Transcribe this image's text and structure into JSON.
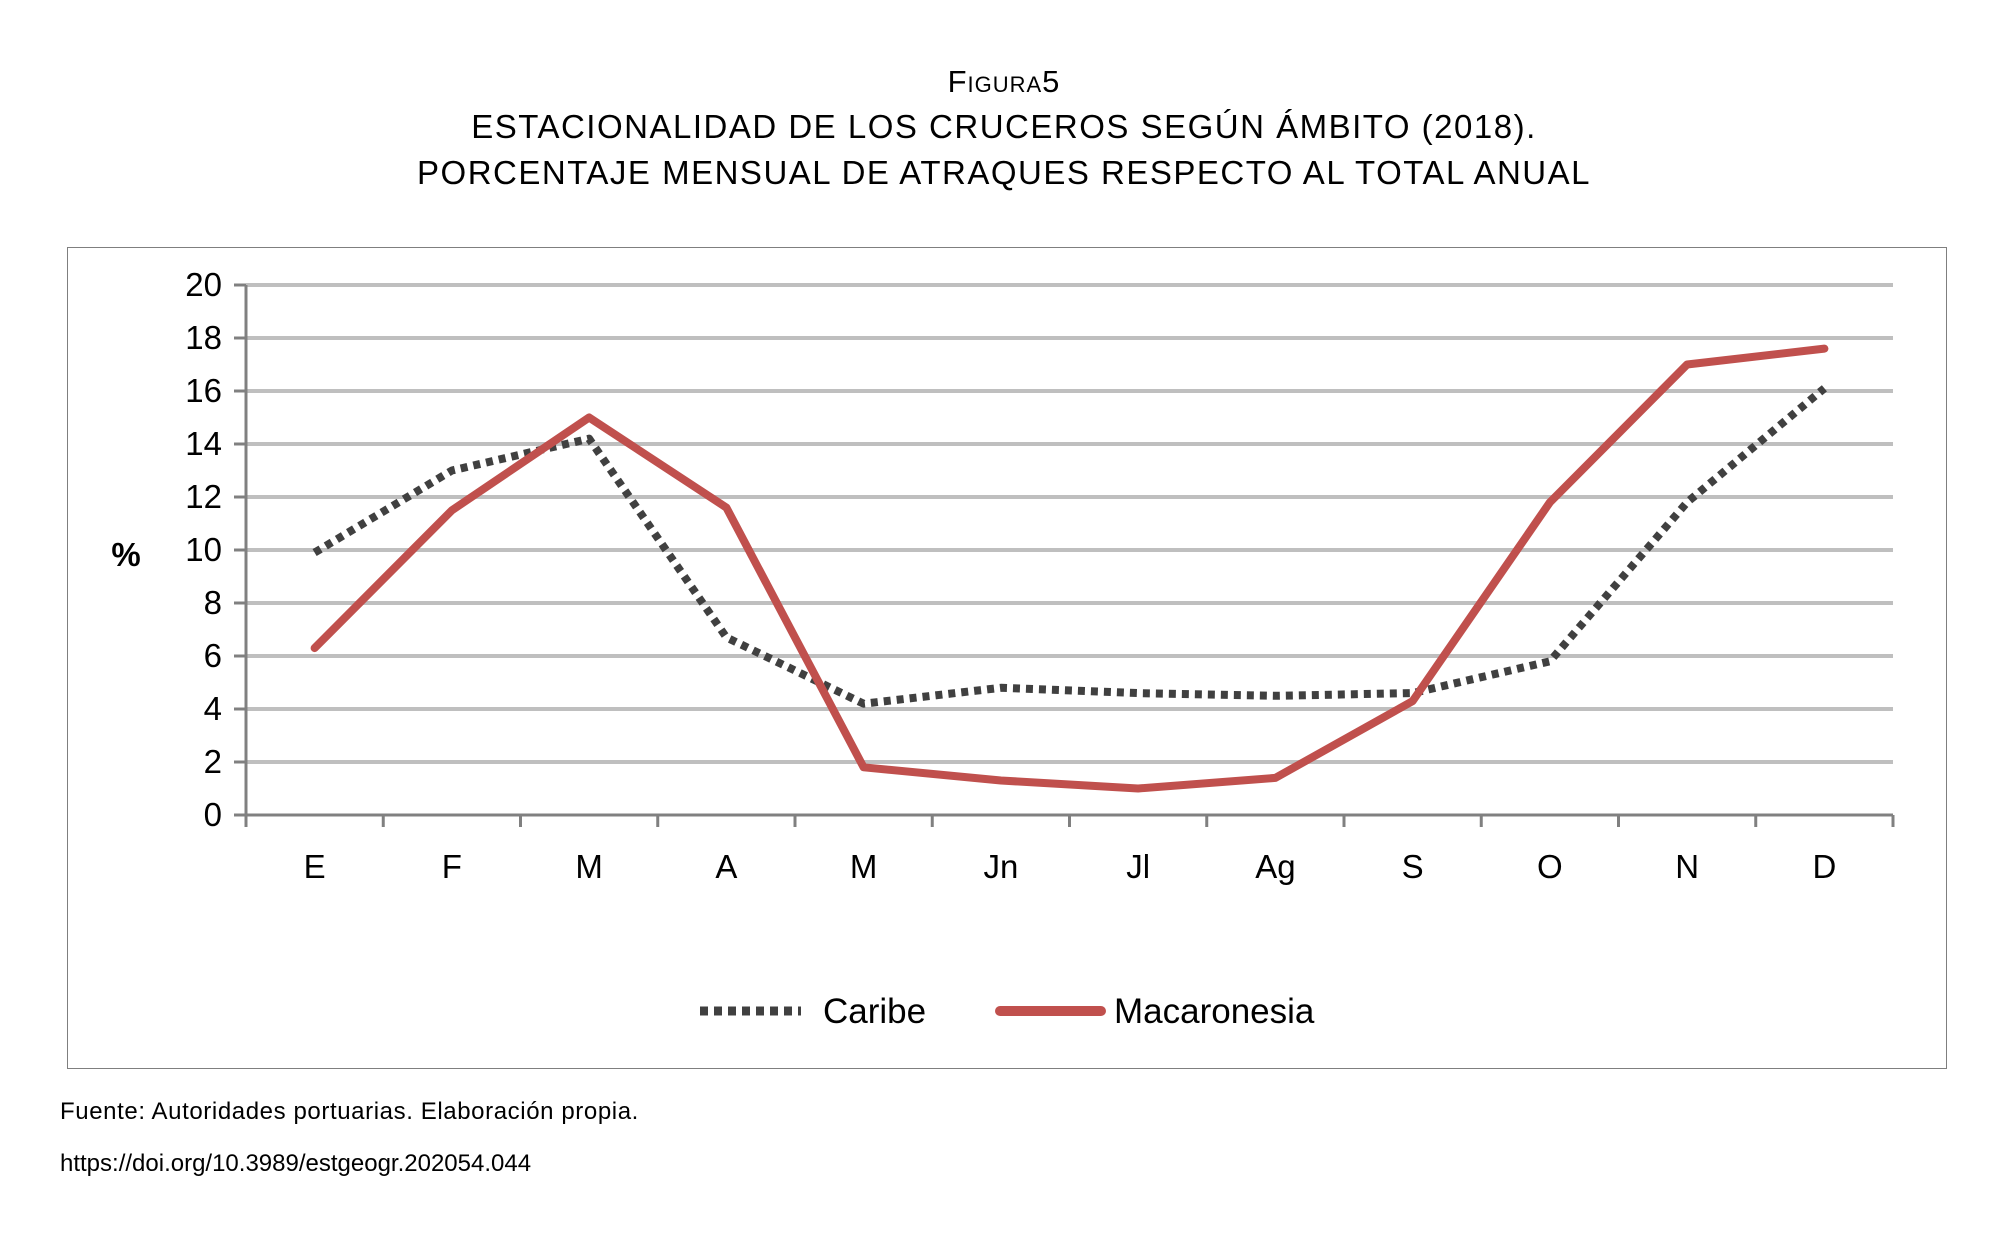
{
  "figure": {
    "label": "Figura5",
    "title_line1": "ESTACIONALIDAD DE LOS CRUCEROS SEGÚN ÁMBITO (2018).",
    "title_line2": "PORCENTAJE MENSUAL DE ATRAQUES RESPECTO AL TOTAL ANUAL"
  },
  "source": "Fuente: Autoridades portuarias. Elaboración propia.",
  "doi": "https://doi.org/10.3989/estgeogr.202054.044",
  "chart_data": {
    "type": "line",
    "ylabel": "%",
    "xlabel": "",
    "categories": [
      "E",
      "F",
      "M",
      "A",
      "M",
      "Jn",
      "Jl",
      "Ag",
      "S",
      "O",
      "N",
      "D"
    ],
    "ylim": [
      0,
      20
    ],
    "yticks": [
      0,
      2,
      4,
      6,
      8,
      10,
      12,
      14,
      16,
      18,
      20
    ],
    "grid": true,
    "legend_position": "bottom",
    "series": [
      {
        "name": "Caribe",
        "style": "dotted",
        "color": "#404040",
        "values": [
          9.9,
          13.0,
          14.2,
          6.7,
          4.2,
          4.8,
          4.6,
          4.5,
          4.6,
          5.8,
          11.8,
          16.1
        ]
      },
      {
        "name": "Macaronesia",
        "style": "solid",
        "color": "#c0504d",
        "values": [
          6.3,
          11.5,
          15.0,
          11.6,
          1.8,
          1.3,
          1.0,
          1.4,
          4.3,
          11.8,
          17.0,
          17.6
        ]
      }
    ]
  }
}
